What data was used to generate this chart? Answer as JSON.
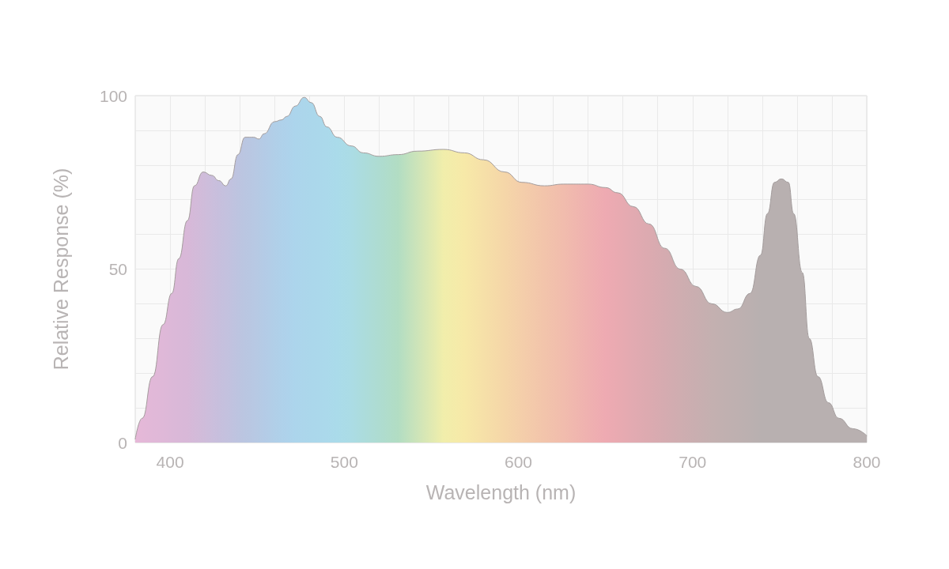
{
  "chart_data": {
    "type": "area",
    "xlabel": "Wavelength (nm)",
    "ylabel": "Relative Response (%)",
    "x": [
      380,
      384,
      390,
      396,
      401,
      405,
      410,
      414,
      419,
      424,
      428,
      432,
      435,
      439,
      443,
      448,
      451,
      454,
      460,
      464,
      467,
      472,
      477,
      481,
      486,
      490,
      496,
      504,
      511,
      520,
      531,
      542,
      557,
      569,
      580,
      592,
      602,
      615,
      626,
      640,
      650,
      657,
      666,
      675,
      684,
      693,
      702,
      711,
      720,
      726,
      733,
      739,
      743,
      747,
      751,
      755,
      758,
      763,
      767,
      772,
      778,
      784,
      792,
      800
    ],
    "series": [
      {
        "color": "#a39c9c",
        "colors": [
          "#e6b8d8",
          "#e4b8d8",
          "#e1b8d8",
          "#dfb8d8",
          "#dcb8d8",
          "#dab8d8",
          "#d8b8d8",
          "#d4bad9",
          "#d0bcda",
          "#cbbedc",
          "#c7bfdd",
          "#c4c1de",
          "#c1c2df",
          "#bdc4e0",
          "#bac6e1",
          "#b8c8e3",
          "#b6cae4",
          "#b4cbe6",
          "#b1cfe8",
          "#afd1ea",
          "#aed2eb",
          "#acd5ec",
          "#acd6eb",
          "#abd7eb",
          "#abd8eb",
          "#abd9eb",
          "#aadbea",
          "#abdce5",
          "#acdcdc",
          "#aedcd1",
          "#b2ddc3",
          "#cde4b9",
          "#f1eeab",
          "#f7e9a8",
          "#f6e0a8",
          "#f5d6a8",
          "#f4ceaa",
          "#f2c4ab",
          "#f1bcad",
          "#efb1b0",
          "#eeaab2",
          "#e9aab1",
          "#e2aab1",
          "#dcaab0",
          "#d5abb0",
          "#cfadb0",
          "#c9aeb0",
          "#c4b0b0",
          "#c0b0b0",
          "#beb0b0",
          "#bbb0b0",
          "#b8b0b0",
          "#b8b0b0",
          "#b8b0b0",
          "#b8b0b0",
          "#b8b0b0",
          "#b8b0b0",
          "#b8b0b0",
          "#b8b0b0",
          "#b8b0b0",
          "#b8b0b0",
          "#b8b0b0",
          "#b8b0b0",
          "#b8b0b0"
        ],
        "values": [
          1,
          7,
          19,
          34,
          43,
          53,
          64,
          74,
          78,
          77,
          75.5,
          74,
          76,
          83,
          88,
          88,
          87.5,
          89,
          92.5,
          93,
          94,
          97,
          99.5,
          98,
          94,
          91,
          88,
          85.5,
          83.5,
          82.5,
          83,
          84,
          84.5,
          83.5,
          81.5,
          78,
          75,
          74,
          74.5,
          74.5,
          73.5,
          72,
          68,
          63,
          56,
          50,
          45,
          40,
          37.5,
          38.5,
          43,
          54,
          66,
          75,
          76,
          75,
          66,
          49,
          30,
          19,
          11.5,
          7,
          4,
          2
        ]
      }
    ],
    "xlim": [
      380,
      800
    ],
    "ylim": [
      0,
      100
    ],
    "xticks": [
      400,
      {
        "value": 420,
        "label": null
      },
      {
        "value": 440,
        "label": null
      },
      {
        "value": 460,
        "label": null
      },
      {
        "value": 480,
        "label": null
      },
      500,
      {
        "value": 520,
        "label": null
      },
      {
        "value": 540,
        "label": null
      },
      {
        "value": 560,
        "label": null
      },
      {
        "value": 580,
        "label": null
      },
      600,
      {
        "value": 620,
        "label": null
      },
      {
        "value": 640,
        "label": null
      },
      {
        "value": 660,
        "label": null
      },
      {
        "value": 680,
        "label": null
      },
      700,
      {
        "value": 720,
        "label": null
      },
      {
        "value": 740,
        "label": null
      },
      {
        "value": 760,
        "label": null
      },
      {
        "value": 780,
        "label": null
      },
      800
    ],
    "yticks": [
      0,
      {
        "value": 10,
        "label": null
      },
      {
        "value": 20,
        "label": null
      },
      {
        "value": 30,
        "label": null
      },
      {
        "value": 40,
        "label": null
      },
      50,
      {
        "value": 60,
        "label": null
      },
      {
        "value": 70,
        "label": null
      },
      {
        "value": 80,
        "label": null
      },
      {
        "value": 90,
        "label": null
      },
      100
    ],
    "grid": true,
    "marker": "none"
  }
}
